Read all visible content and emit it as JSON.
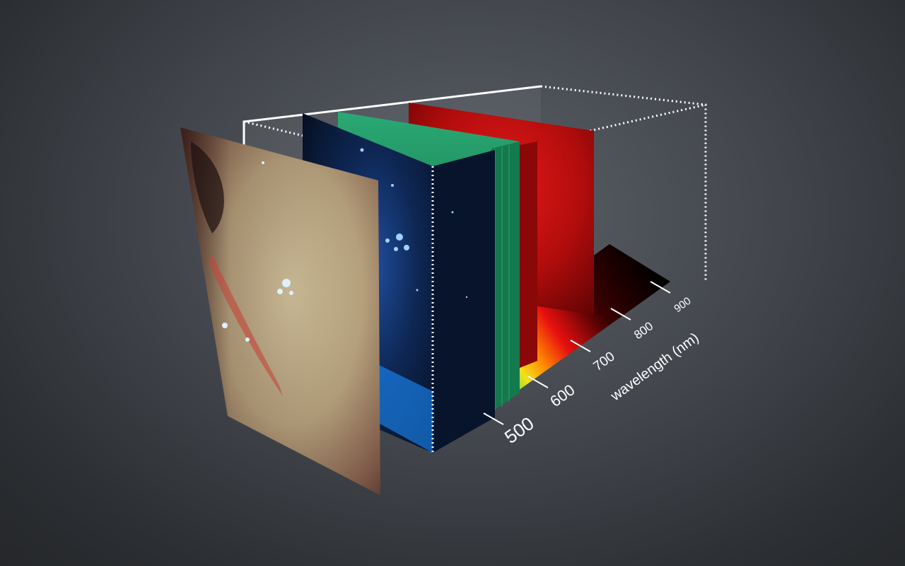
{
  "axis": {
    "label": "wavelength (nm)",
    "ticks": [
      "500",
      "600",
      "700",
      "800",
      "900"
    ]
  },
  "colors": {
    "background": "#3f4348",
    "frame": "#ffffff",
    "blue_slice": "#0a1a3a",
    "green_slice": "#1e8a5c",
    "red_slice": "#c21010",
    "nebula": "#b8a37e"
  },
  "layers": [
    "nebula-composite",
    "blue-slice",
    "green-slice",
    "red-slice"
  ]
}
